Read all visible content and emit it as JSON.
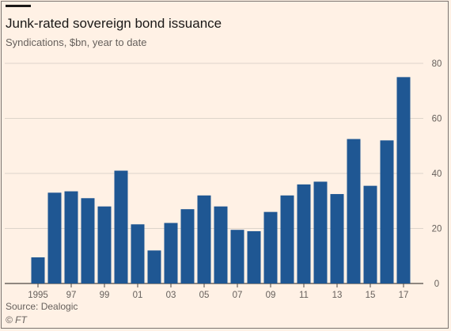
{
  "header": {
    "title": "Junk-rated sovereign bond issuance",
    "subtitle": "Syndications, $bn, year to date"
  },
  "footer": {
    "source": "Source: Dealogic",
    "credit": "© FT"
  },
  "colors": {
    "background": "#fff1e5",
    "bar": "#1f5793",
    "grid": "#ddd4ca",
    "baseline": "#4d4844",
    "text": "#66605c",
    "title": "#1a1817"
  },
  "chart_data": {
    "type": "bar",
    "title": "Junk-rated sovereign bond issuance",
    "subtitle": "Syndications, $bn, year to date",
    "xlabel": "",
    "ylabel": "",
    "categories": [
      "1995",
      "1996",
      "1997",
      "1998",
      "1999",
      "2000",
      "2001",
      "2002",
      "2003",
      "2004",
      "2005",
      "2006",
      "2007",
      "2008",
      "2009",
      "2010",
      "2011",
      "2012",
      "2013",
      "2014",
      "2015",
      "2016",
      "2017"
    ],
    "x_tick_labels": [
      "1995",
      "",
      "97",
      "",
      "99",
      "",
      "01",
      "",
      "03",
      "",
      "05",
      "",
      "07",
      "",
      "09",
      "",
      "11",
      "",
      "13",
      "",
      "15",
      "",
      "17"
    ],
    "values": [
      9.5,
      33,
      33.5,
      31,
      28,
      41,
      21.5,
      12,
      22,
      27,
      32,
      28,
      19.5,
      19,
      26,
      32,
      36,
      37,
      32.5,
      52.5,
      35.5,
      52,
      75
    ],
    "y_ticks": [
      0,
      20,
      40,
      60,
      80
    ],
    "ylim": [
      0,
      80
    ],
    "grid": true,
    "y_axis_side": "right"
  }
}
